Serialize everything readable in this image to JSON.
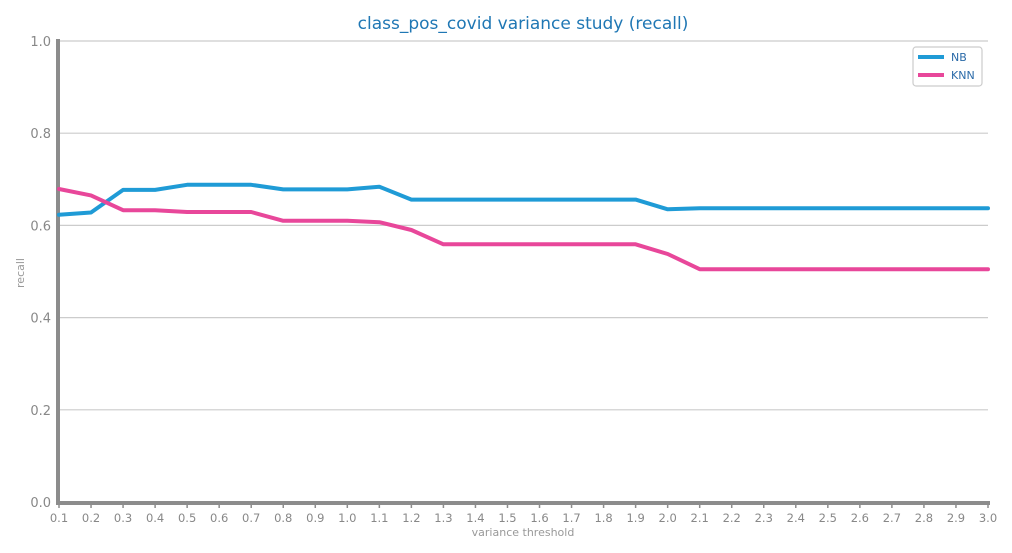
{
  "chart_data": {
    "type": "line",
    "title": "class_pos_covid variance study (recall)",
    "xlabel": "variance threshold",
    "ylabel": "recall",
    "x": [
      0.1,
      0.2,
      0.3,
      0.4,
      0.5,
      0.6,
      0.7,
      0.8,
      0.9,
      1.0,
      1.1,
      1.2,
      1.3,
      1.4,
      1.5,
      1.6,
      1.7,
      1.8,
      1.9,
      2.0,
      2.1,
      2.2,
      2.3,
      2.4,
      2.5,
      2.6,
      2.7,
      2.8,
      2.9,
      3.0
    ],
    "xtick_labels": [
      "0.1",
      "0.2",
      "0.3",
      "0.4",
      "0.5",
      "0.6",
      "0.7",
      "0.8",
      "0.9",
      "1.0",
      "1.1",
      "1.2",
      "1.3",
      "1.4",
      "1.5",
      "1.6",
      "1.7",
      "1.8",
      "1.9",
      "2.0",
      "2.1",
      "2.2",
      "2.3",
      "2.4",
      "2.5",
      "2.6",
      "2.7",
      "2.8",
      "2.9",
      "3.0"
    ],
    "ytick_labels": [
      "0.0",
      "0.2",
      "0.4",
      "0.6",
      "0.8",
      "1.0"
    ],
    "yticks": [
      0.0,
      0.2,
      0.4,
      0.6,
      0.8,
      1.0
    ],
    "xlim": [
      0.1,
      3.0
    ],
    "ylim": [
      0.0,
      1.0
    ],
    "grid": "horizontal",
    "legend_position": "top-right",
    "series": [
      {
        "name": "NB",
        "color": "#1f9bd6",
        "values": [
          0.623,
          0.628,
          0.677,
          0.677,
          0.688,
          0.688,
          0.688,
          0.678,
          0.678,
          0.678,
          0.684,
          0.656,
          0.656,
          0.656,
          0.656,
          0.656,
          0.656,
          0.656,
          0.656,
          0.635,
          0.637,
          0.637,
          0.637,
          0.637,
          0.637,
          0.637,
          0.637,
          0.637,
          0.637,
          0.637
        ]
      },
      {
        "name": "KNN",
        "color": "#e8479a",
        "values": [
          0.679,
          0.665,
          0.633,
          0.633,
          0.629,
          0.629,
          0.629,
          0.61,
          0.61,
          0.61,
          0.607,
          0.59,
          0.559,
          0.559,
          0.559,
          0.559,
          0.559,
          0.559,
          0.559,
          0.538,
          0.505,
          0.505,
          0.505,
          0.505,
          0.505,
          0.505,
          0.505,
          0.505,
          0.505,
          0.505
        ]
      }
    ]
  }
}
